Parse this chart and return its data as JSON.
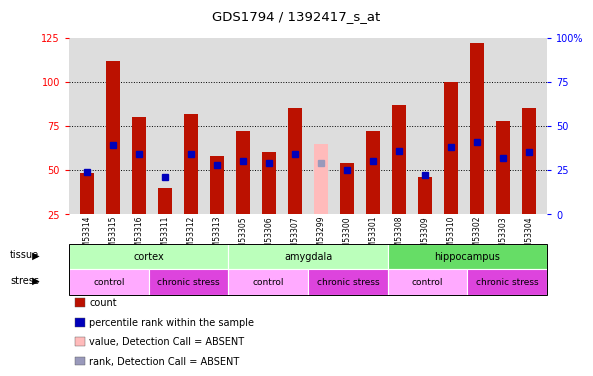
{
  "title": "GDS1794 / 1392417_s_at",
  "samples": [
    "GSM53314",
    "GSM53315",
    "GSM53316",
    "GSM53311",
    "GSM53312",
    "GSM53313",
    "GSM53305",
    "GSM53306",
    "GSM53307",
    "GSM53299",
    "GSM53300",
    "GSM53301",
    "GSM53308",
    "GSM53309",
    "GSM53310",
    "GSM53302",
    "GSM53303",
    "GSM53304"
  ],
  "bar_values": [
    48,
    112,
    80,
    40,
    82,
    58,
    72,
    60,
    85,
    65,
    54,
    72,
    87,
    46,
    100,
    122,
    78,
    85
  ],
  "bar_absent": [
    false,
    false,
    false,
    false,
    false,
    false,
    false,
    false,
    false,
    true,
    false,
    false,
    false,
    false,
    false,
    false,
    false,
    false
  ],
  "dot_values": [
    49,
    64,
    59,
    46,
    59,
    53,
    55,
    54,
    59,
    54,
    50,
    55,
    61,
    47,
    63,
    66,
    57,
    60
  ],
  "dot_absent": [
    false,
    false,
    false,
    false,
    false,
    false,
    false,
    false,
    false,
    true,
    false,
    false,
    false,
    false,
    false,
    false,
    false,
    false
  ],
  "bar_color": "#bb1100",
  "bar_absent_color": "#ffbbbb",
  "dot_color": "#0000bb",
  "dot_absent_color": "#9999bb",
  "ylim_left": [
    25,
    125
  ],
  "ylim_right": [
    0,
    100
  ],
  "yticks_left": [
    25,
    50,
    75,
    100,
    125
  ],
  "yticks_right": [
    0,
    25,
    50,
    75,
    100
  ],
  "ytick_labels_right": [
    "0",
    "25",
    "50",
    "75",
    "100%"
  ],
  "tissue_groups": [
    {
      "label": "cortex",
      "start": 0,
      "end": 6,
      "color": "#bbffbb"
    },
    {
      "label": "amygdala",
      "start": 6,
      "end": 12,
      "color": "#bbffbb"
    },
    {
      "label": "hippocampus",
      "start": 12,
      "end": 18,
      "color": "#66dd66"
    }
  ],
  "stress_groups": [
    {
      "label": "control",
      "start": 0,
      "end": 3,
      "color": "#ffaaff"
    },
    {
      "label": "chronic stress",
      "start": 3,
      "end": 6,
      "color": "#dd44dd"
    },
    {
      "label": "control",
      "start": 6,
      "end": 9,
      "color": "#ffaaff"
    },
    {
      "label": "chronic stress",
      "start": 9,
      "end": 12,
      "color": "#dd44dd"
    },
    {
      "label": "control",
      "start": 12,
      "end": 15,
      "color": "#ffaaff"
    },
    {
      "label": "chronic stress",
      "start": 15,
      "end": 18,
      "color": "#dd44dd"
    }
  ],
  "legend_items": [
    {
      "label": "count",
      "color": "#bb1100"
    },
    {
      "label": "percentile rank within the sample",
      "color": "#0000bb"
    },
    {
      "label": "value, Detection Call = ABSENT",
      "color": "#ffbbbb"
    },
    {
      "label": "rank, Detection Call = ABSENT",
      "color": "#9999bb"
    }
  ],
  "background_color": "#ffffff",
  "plot_bg_color": "#dddddd",
  "bar_width": 0.55
}
